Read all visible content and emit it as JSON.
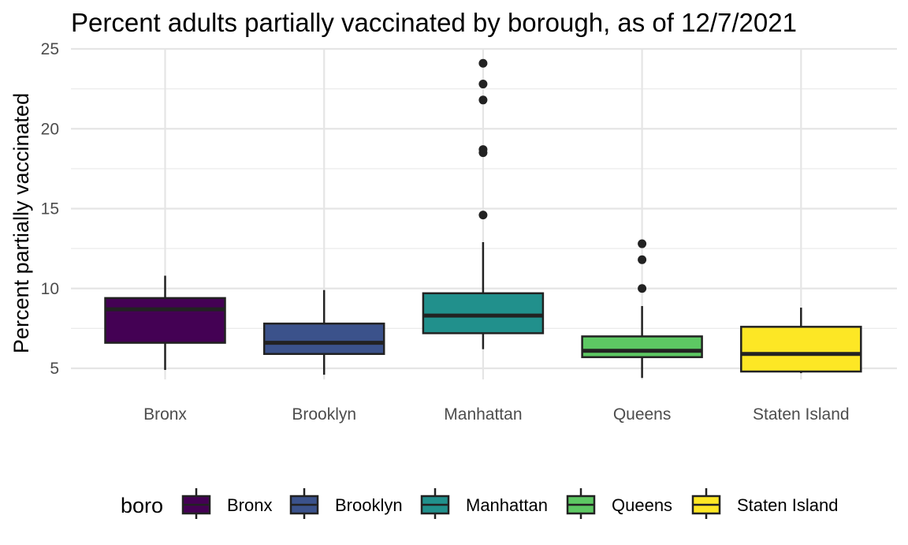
{
  "chart_data": {
    "type": "boxplot",
    "title": "Percent adults partially vaccinated by borough, as of 12/7/2021",
    "xlabel": "",
    "ylabel": "Percent partially vaccinated",
    "ylim": [
      4.3,
      25.0
    ],
    "y_ticks": [
      "5",
      "10",
      "15",
      "20",
      "25"
    ],
    "grid": true,
    "legend": {
      "title": "boro",
      "position": "bottom"
    },
    "categories": [
      "Bronx",
      "Brooklyn",
      "Manhattan",
      "Queens",
      "Staten Island"
    ],
    "colors": [
      "#440154",
      "#3b528b",
      "#21908c",
      "#5dc863",
      "#fde725"
    ],
    "boxes": [
      {
        "name": "Bronx",
        "whisker_low": 4.9,
        "q1": 6.6,
        "median": 8.7,
        "q3": 9.4,
        "whisker_high": 10.8,
        "outliers": []
      },
      {
        "name": "Brooklyn",
        "whisker_low": 4.6,
        "q1": 5.9,
        "median": 6.6,
        "q3": 7.8,
        "whisker_high": 9.9,
        "outliers": []
      },
      {
        "name": "Manhattan",
        "whisker_low": 6.2,
        "q1": 7.2,
        "median": 8.3,
        "q3": 9.7,
        "whisker_high": 12.9,
        "outliers": [
          14.6,
          18.5,
          18.7,
          21.8,
          22.8,
          24.1
        ]
      },
      {
        "name": "Queens",
        "whisker_low": 4.4,
        "q1": 5.7,
        "median": 6.1,
        "q3": 7.0,
        "whisker_high": 8.9,
        "outliers": [
          10.0,
          11.8,
          12.8
        ]
      },
      {
        "name": "Staten Island",
        "whisker_low": 4.7,
        "q1": 4.8,
        "median": 5.9,
        "q3": 7.6,
        "whisker_high": 8.8,
        "outliers": []
      }
    ]
  }
}
